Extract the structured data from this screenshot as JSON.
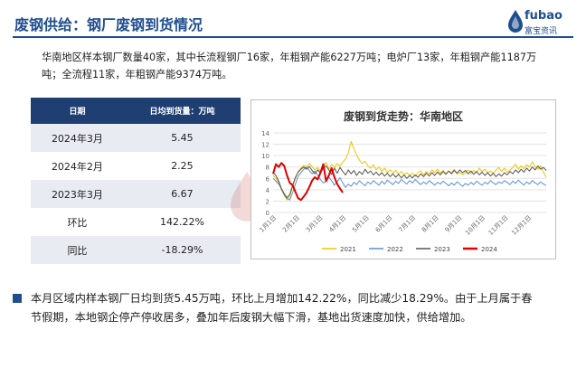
{
  "header": {
    "title": "废钢供给：钢厂废钢到货情况",
    "logo_en": "fubao",
    "logo_cn": "富宝资讯",
    "accent_color": "#1f4e8f"
  },
  "intro_text": "华南地区样本钢厂数量40家，其中长流程钢厂16家，年粗钢产能6227万吨；电炉厂13家，年粗钢产能1187万吨；全流程11家，年粗钢产能9374万吨。",
  "table": {
    "headers": [
      "日期",
      "日均到货量：万吨"
    ],
    "rows": [
      {
        "label": "2024年3月",
        "value": "5.45",
        "style": ""
      },
      {
        "label": "2024年2月",
        "value": "2.25",
        "style": ""
      },
      {
        "label": "2023年3月",
        "value": "6.67",
        "style": ""
      },
      {
        "label": "环比",
        "value": "142.22%",
        "style": "pos"
      },
      {
        "label": "同比",
        "value": "-18.29%",
        "style": "neg"
      }
    ]
  },
  "summary_text": "本月区域内样本钢厂日均到货5.45万吨，环比上月增加142.22%，同比减少18.29%。由于上月属于春节假期，本地钢企停产停收居多，叠加年后废钢大幅下滑，基地出货速度加快，供给增加。",
  "chart_data": {
    "type": "line",
    "title": "废钢到货走势：华南地区",
    "xlabel": "",
    "ylabel": "",
    "ylim": [
      0,
      14
    ],
    "yticks": [
      0,
      2,
      4,
      6,
      8,
      10,
      12,
      14
    ],
    "x_ticks": [
      "1月1日",
      "2月1日",
      "3月1日",
      "4月1日",
      "5月1日",
      "6月1日",
      "7月1日",
      "8月1日",
      "9月1日",
      "10月1日",
      "11月1日",
      "12月1日"
    ],
    "grid": true,
    "legend_position": "bottom",
    "series": [
      {
        "name": "2021",
        "color": "#f2c200",
        "width": 1,
        "values": [
          6.5,
          6.0,
          5.2,
          4.0,
          3.0,
          2.2,
          2.8,
          4.5,
          6.0,
          7.2,
          7.8,
          8.3,
          8.0,
          8.6,
          8.1,
          7.5,
          7.9,
          7.2,
          8.1,
          8.8,
          7.6,
          8.4,
          7.9,
          8.6,
          8.1,
          8.9,
          9.4,
          10.5,
          12.5,
          11.2,
          10.1,
          9.2,
          8.6,
          9.0,
          8.2,
          7.8,
          8.4,
          7.5,
          8.0,
          7.2,
          7.8,
          7.0,
          7.5,
          6.9,
          7.4,
          6.8,
          7.2,
          6.6,
          7.0,
          6.5,
          6.9,
          6.4,
          7.0,
          7.3,
          6.6,
          7.2,
          6.8,
          7.5,
          7.0,
          7.6,
          6.9,
          7.4,
          6.8,
          7.3,
          7.0,
          7.6,
          6.8,
          7.1,
          6.6,
          7.0,
          7.5,
          6.9,
          7.4,
          7.0,
          7.8,
          7.2,
          7.6,
          7.0,
          7.3,
          6.9,
          7.5,
          7.9,
          7.2,
          7.8,
          7.1,
          7.4,
          7.9,
          8.5,
          7.6,
          8.2,
          7.7,
          8.4,
          8.0,
          8.9,
          8.1,
          7.6,
          8.2,
          7.1,
          6.2
        ]
      },
      {
        "name": "2022",
        "color": "#5b8fd6",
        "width": 1,
        "values": [
          6.0,
          5.5,
          5.0,
          4.2,
          3.1,
          2.5,
          2.2,
          3.5,
          5.0,
          6.4,
          7.0,
          7.6,
          8.0,
          7.4,
          6.8,
          7.3,
          6.5,
          5.8,
          5.2,
          5.5,
          6.2,
          5.6,
          4.8,
          5.4,
          6.1,
          5.2,
          4.4,
          5.0,
          4.6,
          5.3,
          4.9,
          5.6,
          5.1,
          4.7,
          5.4,
          5.0,
          5.6,
          5.2,
          4.8,
          5.5,
          5.0,
          5.7,
          5.3,
          4.9,
          5.5,
          5.1,
          5.8,
          5.4,
          5.0,
          5.6,
          5.2,
          5.8,
          5.3,
          4.9,
          5.4,
          5.0,
          5.6,
          5.2,
          4.8,
          5.3,
          5.0,
          5.5,
          5.1,
          4.7,
          5.2,
          4.8,
          5.4,
          5.0,
          4.6,
          5.1,
          4.8,
          5.3,
          4.9,
          5.5,
          5.1,
          4.8,
          5.3,
          5.0,
          5.6,
          5.2,
          4.9,
          5.4,
          5.1,
          5.6,
          5.3,
          4.9,
          5.5,
          5.1,
          5.7,
          5.2,
          4.8,
          5.4,
          5.0,
          5.6,
          5.2,
          4.9,
          5.4,
          5.0,
          4.8
        ]
      },
      {
        "name": "2023",
        "color": "#555555",
        "width": 1,
        "values": [
          7.0,
          6.5,
          5.5,
          4.2,
          3.3,
          2.6,
          3.2,
          4.8,
          6.2,
          7.1,
          7.6,
          8.0,
          7.6,
          8.1,
          7.4,
          6.8,
          7.5,
          6.9,
          7.8,
          8.2,
          7.5,
          6.7,
          7.8,
          6.9,
          7.9,
          7.2,
          6.6,
          7.5,
          6.8,
          7.4,
          6.5,
          7.2,
          6.7,
          7.6,
          6.9,
          7.3,
          6.6,
          7.1,
          6.5,
          7.0,
          6.4,
          6.9,
          6.3,
          6.8,
          6.2,
          6.7,
          6.1,
          6.6,
          6.0,
          6.5,
          6.1,
          6.6,
          6.2,
          6.8,
          6.3,
          6.9,
          6.4,
          7.0,
          6.5,
          7.1,
          6.6,
          7.2,
          6.7,
          7.3,
          6.8,
          7.4,
          6.9,
          7.5,
          7.0,
          7.4,
          6.8,
          7.3,
          6.7,
          7.2,
          6.6,
          7.1,
          6.5,
          7.0,
          6.4,
          6.9,
          6.3,
          6.8,
          6.4,
          7.0,
          6.6,
          7.2,
          6.8,
          7.5,
          7.0,
          7.6,
          7.1,
          7.8,
          7.3,
          8.0,
          7.5,
          8.2,
          7.6,
          7.9,
          7.4
        ]
      },
      {
        "name": "2024",
        "color": "#e00000",
        "width": 2,
        "values": [
          6.8,
          8.5,
          8.0,
          8.7,
          8.2,
          6.5,
          5.2,
          4.8,
          3.6,
          2.5,
          2.2,
          2.8,
          3.5,
          4.5,
          5.6,
          6.2,
          5.8,
          7.0,
          8.5,
          5.5,
          6.5,
          7.8,
          6.2,
          5.0,
          4.2,
          3.5,
          null,
          null,
          null,
          null,
          null,
          null,
          null,
          null,
          null,
          null,
          null,
          null,
          null,
          null,
          null,
          null,
          null,
          null,
          null,
          null,
          null,
          null,
          null,
          null,
          null,
          null,
          null,
          null,
          null,
          null,
          null,
          null,
          null,
          null,
          null,
          null,
          null,
          null,
          null,
          null,
          null,
          null,
          null,
          null,
          null,
          null,
          null,
          null,
          null,
          null,
          null,
          null,
          null,
          null,
          null,
          null,
          null,
          null,
          null,
          null,
          null,
          null,
          null,
          null,
          null,
          null,
          null,
          null,
          null,
          null,
          null,
          null,
          null
        ]
      }
    ]
  }
}
